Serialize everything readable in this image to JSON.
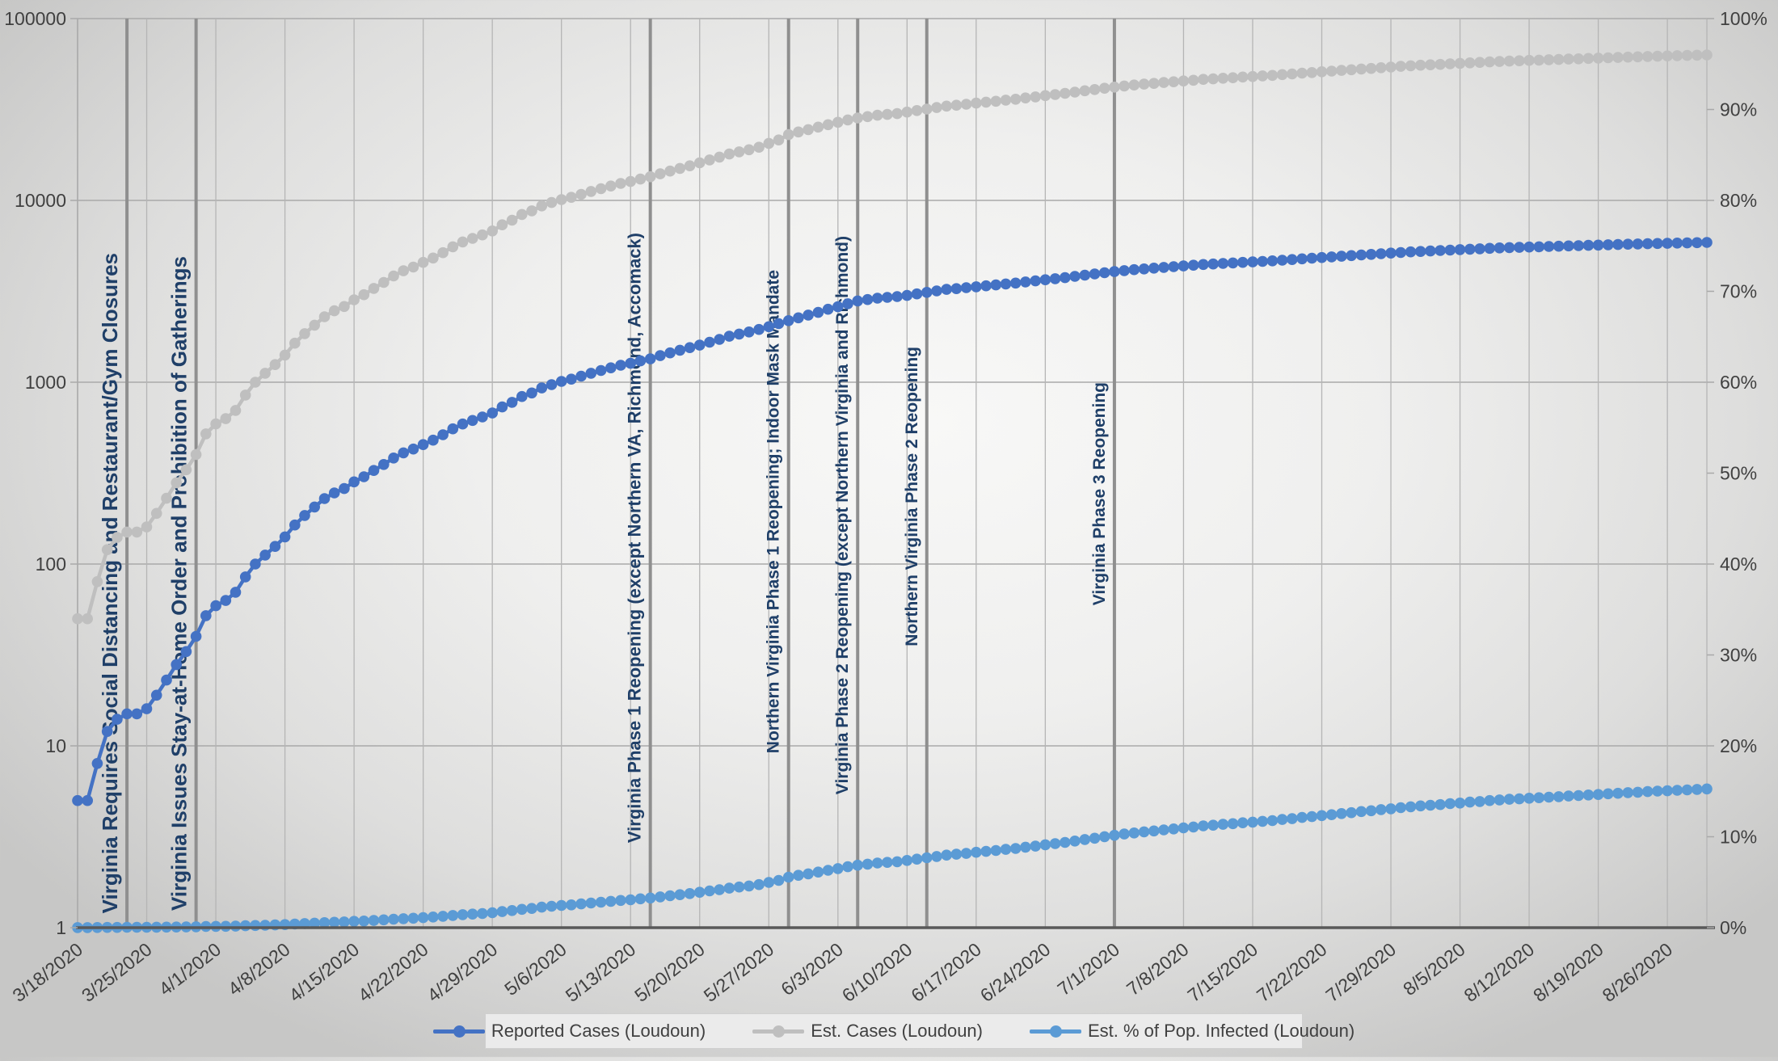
{
  "chart_data": {
    "type": "line",
    "title": "",
    "x_axis": {
      "start_label": "3/18/2020",
      "tick_interval_days": 7,
      "tick_labels": [
        "3/18/2020",
        "3/25/2020",
        "4/1/2020",
        "4/8/2020",
        "4/15/2020",
        "4/22/2020",
        "4/29/2020",
        "5/6/2020",
        "5/13/2020",
        "5/20/2020",
        "5/27/2020",
        "6/3/2020",
        "6/10/2020",
        "6/17/2020",
        "6/24/2020",
        "7/1/2020",
        "7/8/2020",
        "7/15/2020",
        "7/22/2020",
        "7/29/2020",
        "8/5/2020",
        "8/12/2020",
        "8/19/2020",
        "8/26/2020"
      ]
    },
    "y_left": {
      "scale": "log",
      "range": [
        1,
        100000
      ],
      "tick_labels": [
        "1",
        "10",
        "100",
        "1000",
        "10000",
        "100000"
      ],
      "tick_values": [
        1,
        10,
        100,
        1000,
        10000,
        100000
      ]
    },
    "y_right": {
      "scale": "linear",
      "range": [
        0,
        100
      ],
      "tick_labels": [
        "0%",
        "10%",
        "20%",
        "30%",
        "40%",
        "50%",
        "60%",
        "70%",
        "80%",
        "90%",
        "100%"
      ],
      "tick_values": [
        0,
        10,
        20,
        30,
        40,
        50,
        60,
        70,
        80,
        90,
        100
      ]
    },
    "series": [
      {
        "name": "Reported Cases (Loudoun)",
        "color": "#4472C4",
        "axis": "left",
        "values": [
          5,
          5,
          8,
          12,
          14,
          15,
          15,
          16,
          19,
          23,
          28,
          33,
          40,
          52,
          59,
          63,
          70,
          85,
          100,
          112,
          125,
          141,
          164,
          185,
          206,
          229,
          246,
          260,
          283,
          302,
          327,
          353,
          383,
          409,
          429,
          454,
          480,
          514,
          554,
          589,
          616,
          644,
          677,
          731,
          775,
          834,
          873,
          930,
          970,
          1010,
          1040,
          1080,
          1120,
          1160,
          1200,
          1240,
          1270,
          1310,
          1344,
          1400,
          1450,
          1500,
          1550,
          1600,
          1660,
          1720,
          1790,
          1840,
          1890,
          1950,
          2020,
          2100,
          2180,
          2260,
          2340,
          2420,
          2520,
          2600,
          2700,
          2800,
          2850,
          2900,
          2930,
          2960,
          3000,
          3060,
          3120,
          3180,
          3240,
          3270,
          3310,
          3350,
          3390,
          3430,
          3470,
          3510,
          3560,
          3610,
          3660,
          3710,
          3760,
          3820,
          3880,
          3940,
          4000,
          4060,
          4110,
          4160,
          4200,
          4240,
          4280,
          4320,
          4360,
          4400,
          4440,
          4470,
          4500,
          4530,
          4560,
          4590,
          4620,
          4650,
          4690,
          4730,
          4770,
          4810,
          4850,
          4890,
          4930,
          4970,
          5010,
          5050,
          5090,
          5130,
          5170,
          5210,
          5240,
          5270,
          5300,
          5330,
          5360,
          5390,
          5420,
          5450,
          5480,
          5500,
          5520,
          5540,
          5560,
          5580,
          5600,
          5620,
          5640,
          5660,
          5680,
          5700,
          5720,
          5740,
          5760,
          5780,
          5795,
          5810,
          5825,
          5840,
          5858,
          5875
        ]
      },
      {
        "name": "Est. Cases (Loudoun)",
        "color": "#BFBFBF",
        "axis": "left",
        "values": [
          50,
          50,
          80,
          120,
          140,
          150,
          150,
          160,
          190,
          230,
          280,
          330,
          400,
          520,
          590,
          630,
          700,
          850,
          1000,
          1120,
          1250,
          1410,
          1640,
          1850,
          2060,
          2290,
          2470,
          2610,
          2840,
          3030,
          3280,
          3540,
          3840,
          4100,
          4300,
          4560,
          4820,
          5160,
          5560,
          5910,
          6180,
          6460,
          6790,
          7340,
          7780,
          8370,
          8760,
          9330,
          9740,
          10100,
          10400,
          10800,
          11200,
          11600,
          12000,
          12400,
          12700,
          13100,
          13500,
          14000,
          14500,
          15000,
          15500,
          16100,
          16700,
          17300,
          18000,
          18500,
          19000,
          19600,
          20600,
          21500,
          23000,
          23800,
          24500,
          25300,
          26100,
          26900,
          27700,
          28400,
          28900,
          29400,
          29700,
          30000,
          30600,
          31200,
          31800,
          32400,
          33000,
          33400,
          33800,
          34300,
          34700,
          35100,
          35600,
          36000,
          36600,
          37100,
          37700,
          38200,
          38800,
          39400,
          40100,
          40700,
          41400,
          42000,
          42600,
          43100,
          43600,
          44000,
          44500,
          44900,
          45400,
          45800,
          46300,
          46600,
          47000,
          47300,
          47700,
          48000,
          48400,
          48700,
          49200,
          49600,
          50100,
          50500,
          51000,
          51400,
          51900,
          52300,
          52800,
          53200,
          53700,
          54100,
          54600,
          55000,
          55400,
          55700,
          56000,
          56400,
          56700,
          57100,
          57400,
          57800,
          58100,
          58400,
          58600,
          58900,
          59100,
          59400,
          59600,
          59900,
          60100,
          60400,
          60600,
          60900,
          61100,
          61400,
          61600,
          61900,
          62100,
          62300,
          62500,
          62700,
          62900,
          63100
        ]
      },
      {
        "name": "Est. % of Pop. Infected (Loudoun)",
        "color": "#5B9BD5",
        "axis": "right",
        "values": [
          0.01,
          0.01,
          0.02,
          0.03,
          0.03,
          0.04,
          0.04,
          0.04,
          0.05,
          0.06,
          0.07,
          0.08,
          0.1,
          0.13,
          0.14,
          0.15,
          0.17,
          0.21,
          0.24,
          0.27,
          0.3,
          0.34,
          0.4,
          0.45,
          0.5,
          0.55,
          0.6,
          0.63,
          0.69,
          0.73,
          0.79,
          0.86,
          0.93,
          0.99,
          1.04,
          1.1,
          1.17,
          1.25,
          1.34,
          1.43,
          1.49,
          1.56,
          1.64,
          1.77,
          1.88,
          2.02,
          2.12,
          2.26,
          2.36,
          2.44,
          2.51,
          2.61,
          2.71,
          2.8,
          2.9,
          3.0,
          3.07,
          3.17,
          3.26,
          3.39,
          3.51,
          3.63,
          3.75,
          3.89,
          4.04,
          4.18,
          4.35,
          4.47,
          4.59,
          4.74,
          4.98,
          5.2,
          5.56,
          5.76,
          5.92,
          6.12,
          6.31,
          6.5,
          6.7,
          6.87,
          6.99,
          7.11,
          7.18,
          7.25,
          7.4,
          7.54,
          7.69,
          7.83,
          7.98,
          8.08,
          8.17,
          8.29,
          8.39,
          8.49,
          8.61,
          8.71,
          8.85,
          8.97,
          9.12,
          9.24,
          9.38,
          9.53,
          9.7,
          9.84,
          10.01,
          10.16,
          10.3,
          10.42,
          10.54,
          10.64,
          10.76,
          10.86,
          10.98,
          11.08,
          11.2,
          11.27,
          11.37,
          11.44,
          11.54,
          11.61,
          11.7,
          11.78,
          11.9,
          11.99,
          12.12,
          12.21,
          12.33,
          12.43,
          12.55,
          12.65,
          12.77,
          12.86,
          12.99,
          13.08,
          13.2,
          13.3,
          13.4,
          13.47,
          13.54,
          13.64,
          13.71,
          13.81,
          13.88,
          13.98,
          14.05,
          14.12,
          14.17,
          14.24,
          14.29,
          14.36,
          14.41,
          14.48,
          14.53,
          14.6,
          14.65,
          14.73,
          14.78,
          14.85,
          14.9,
          14.97,
          15.02,
          15.06,
          15.11,
          15.16,
          15.21,
          15.26
        ]
      }
    ],
    "annotations": [
      {
        "label": "Virginia Requires Social Distancing and Restaurant/Gym Closures",
        "day_index": 5
      },
      {
        "label": "Virginia Issues Stay-at-Home Order and Prohibition of Gatherings",
        "day_index": 12
      },
      {
        "label": "Virginia Phase 1 Reopening (except Northern VA, Richmond, Accomack)",
        "day_index": 58
      },
      {
        "label": "Northern Virginia Phase 1 Reopening; Indoor Mask Mandate",
        "day_index": 72
      },
      {
        "label": "Virginia Phase 2 Reopening (except Northern Virginia and Richmond)",
        "day_index": 79
      },
      {
        "label": "Northern Virginia Phase 2 Reopening",
        "day_index": 86
      },
      {
        "label": "Virginia Phase 3 Reopening",
        "day_index": 105
      }
    ],
    "legend_position": "bottom",
    "grid": true
  },
  "colors": {
    "annotation_text": "#1F3F68",
    "event_line": "#8F8F8F",
    "gridline_h": "#A9A9A9",
    "gridline_v": "#B5B5B5",
    "axis_line": "#595959",
    "tick_label": "#404040"
  }
}
